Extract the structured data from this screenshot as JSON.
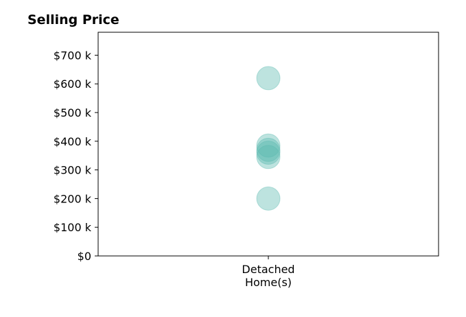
{
  "chart_data": {
    "type": "scatter",
    "title": "Selling Price",
    "xlabel": "",
    "ylabel": "",
    "categories": [
      "Detached\nHome(s)"
    ],
    "y_ticks": [
      {
        "value": 0,
        "label": "$0"
      },
      {
        "value": 100000,
        "label": "$100 k"
      },
      {
        "value": 200000,
        "label": "$200 k"
      },
      {
        "value": 300000,
        "label": "$300 k"
      },
      {
        "value": 400000,
        "label": "$400 k"
      },
      {
        "value": 500000,
        "label": "$500 k"
      },
      {
        "value": 600000,
        "label": "$600 k"
      },
      {
        "value": 700000,
        "label": "$700 k"
      }
    ],
    "ylim": [
      0,
      780000
    ],
    "grid": false,
    "series": [
      {
        "category_index": 0,
        "color": "#5ab8ae",
        "opacity": 0.4,
        "values": [
          620000,
          385000,
          370000,
          360000,
          345000,
          200000
        ]
      }
    ]
  }
}
